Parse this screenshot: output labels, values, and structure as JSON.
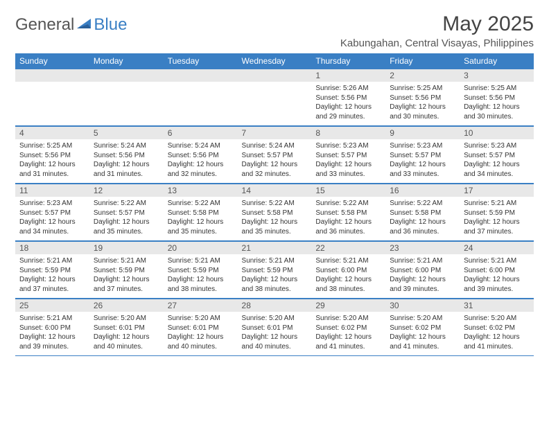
{
  "brand": {
    "word1": "General",
    "word2": "Blue"
  },
  "title": "May 2025",
  "location": "Kabungahan, Central Visayas, Philippines",
  "colors": {
    "header_bg": "#3a7fc4",
    "header_text": "#ffffff",
    "daynum_bg": "#e8e8e8",
    "border": "#3a7fc4",
    "text": "#333333",
    "background": "#ffffff"
  },
  "day_names": [
    "Sunday",
    "Monday",
    "Tuesday",
    "Wednesday",
    "Thursday",
    "Friday",
    "Saturday"
  ],
  "weeks": [
    [
      {
        "day": "",
        "lines": []
      },
      {
        "day": "",
        "lines": []
      },
      {
        "day": "",
        "lines": []
      },
      {
        "day": "",
        "lines": []
      },
      {
        "day": "1",
        "lines": [
          "Sunrise: 5:26 AM",
          "Sunset: 5:56 PM",
          "Daylight: 12 hours",
          "and 29 minutes."
        ]
      },
      {
        "day": "2",
        "lines": [
          "Sunrise: 5:25 AM",
          "Sunset: 5:56 PM",
          "Daylight: 12 hours",
          "and 30 minutes."
        ]
      },
      {
        "day": "3",
        "lines": [
          "Sunrise: 5:25 AM",
          "Sunset: 5:56 PM",
          "Daylight: 12 hours",
          "and 30 minutes."
        ]
      }
    ],
    [
      {
        "day": "4",
        "lines": [
          "Sunrise: 5:25 AM",
          "Sunset: 5:56 PM",
          "Daylight: 12 hours",
          "and 31 minutes."
        ]
      },
      {
        "day": "5",
        "lines": [
          "Sunrise: 5:24 AM",
          "Sunset: 5:56 PM",
          "Daylight: 12 hours",
          "and 31 minutes."
        ]
      },
      {
        "day": "6",
        "lines": [
          "Sunrise: 5:24 AM",
          "Sunset: 5:56 PM",
          "Daylight: 12 hours",
          "and 32 minutes."
        ]
      },
      {
        "day": "7",
        "lines": [
          "Sunrise: 5:24 AM",
          "Sunset: 5:57 PM",
          "Daylight: 12 hours",
          "and 32 minutes."
        ]
      },
      {
        "day": "8",
        "lines": [
          "Sunrise: 5:23 AM",
          "Sunset: 5:57 PM",
          "Daylight: 12 hours",
          "and 33 minutes."
        ]
      },
      {
        "day": "9",
        "lines": [
          "Sunrise: 5:23 AM",
          "Sunset: 5:57 PM",
          "Daylight: 12 hours",
          "and 33 minutes."
        ]
      },
      {
        "day": "10",
        "lines": [
          "Sunrise: 5:23 AM",
          "Sunset: 5:57 PM",
          "Daylight: 12 hours",
          "and 34 minutes."
        ]
      }
    ],
    [
      {
        "day": "11",
        "lines": [
          "Sunrise: 5:23 AM",
          "Sunset: 5:57 PM",
          "Daylight: 12 hours",
          "and 34 minutes."
        ]
      },
      {
        "day": "12",
        "lines": [
          "Sunrise: 5:22 AM",
          "Sunset: 5:57 PM",
          "Daylight: 12 hours",
          "and 35 minutes."
        ]
      },
      {
        "day": "13",
        "lines": [
          "Sunrise: 5:22 AM",
          "Sunset: 5:58 PM",
          "Daylight: 12 hours",
          "and 35 minutes."
        ]
      },
      {
        "day": "14",
        "lines": [
          "Sunrise: 5:22 AM",
          "Sunset: 5:58 PM",
          "Daylight: 12 hours",
          "and 35 minutes."
        ]
      },
      {
        "day": "15",
        "lines": [
          "Sunrise: 5:22 AM",
          "Sunset: 5:58 PM",
          "Daylight: 12 hours",
          "and 36 minutes."
        ]
      },
      {
        "day": "16",
        "lines": [
          "Sunrise: 5:22 AM",
          "Sunset: 5:58 PM",
          "Daylight: 12 hours",
          "and 36 minutes."
        ]
      },
      {
        "day": "17",
        "lines": [
          "Sunrise: 5:21 AM",
          "Sunset: 5:59 PM",
          "Daylight: 12 hours",
          "and 37 minutes."
        ]
      }
    ],
    [
      {
        "day": "18",
        "lines": [
          "Sunrise: 5:21 AM",
          "Sunset: 5:59 PM",
          "Daylight: 12 hours",
          "and 37 minutes."
        ]
      },
      {
        "day": "19",
        "lines": [
          "Sunrise: 5:21 AM",
          "Sunset: 5:59 PM",
          "Daylight: 12 hours",
          "and 37 minutes."
        ]
      },
      {
        "day": "20",
        "lines": [
          "Sunrise: 5:21 AM",
          "Sunset: 5:59 PM",
          "Daylight: 12 hours",
          "and 38 minutes."
        ]
      },
      {
        "day": "21",
        "lines": [
          "Sunrise: 5:21 AM",
          "Sunset: 5:59 PM",
          "Daylight: 12 hours",
          "and 38 minutes."
        ]
      },
      {
        "day": "22",
        "lines": [
          "Sunrise: 5:21 AM",
          "Sunset: 6:00 PM",
          "Daylight: 12 hours",
          "and 38 minutes."
        ]
      },
      {
        "day": "23",
        "lines": [
          "Sunrise: 5:21 AM",
          "Sunset: 6:00 PM",
          "Daylight: 12 hours",
          "and 39 minutes."
        ]
      },
      {
        "day": "24",
        "lines": [
          "Sunrise: 5:21 AM",
          "Sunset: 6:00 PM",
          "Daylight: 12 hours",
          "and 39 minutes."
        ]
      }
    ],
    [
      {
        "day": "25",
        "lines": [
          "Sunrise: 5:21 AM",
          "Sunset: 6:00 PM",
          "Daylight: 12 hours",
          "and 39 minutes."
        ]
      },
      {
        "day": "26",
        "lines": [
          "Sunrise: 5:20 AM",
          "Sunset: 6:01 PM",
          "Daylight: 12 hours",
          "and 40 minutes."
        ]
      },
      {
        "day": "27",
        "lines": [
          "Sunrise: 5:20 AM",
          "Sunset: 6:01 PM",
          "Daylight: 12 hours",
          "and 40 minutes."
        ]
      },
      {
        "day": "28",
        "lines": [
          "Sunrise: 5:20 AM",
          "Sunset: 6:01 PM",
          "Daylight: 12 hours",
          "and 40 minutes."
        ]
      },
      {
        "day": "29",
        "lines": [
          "Sunrise: 5:20 AM",
          "Sunset: 6:02 PM",
          "Daylight: 12 hours",
          "and 41 minutes."
        ]
      },
      {
        "day": "30",
        "lines": [
          "Sunrise: 5:20 AM",
          "Sunset: 6:02 PM",
          "Daylight: 12 hours",
          "and 41 minutes."
        ]
      },
      {
        "day": "31",
        "lines": [
          "Sunrise: 5:20 AM",
          "Sunset: 6:02 PM",
          "Daylight: 12 hours",
          "and 41 minutes."
        ]
      }
    ]
  ]
}
